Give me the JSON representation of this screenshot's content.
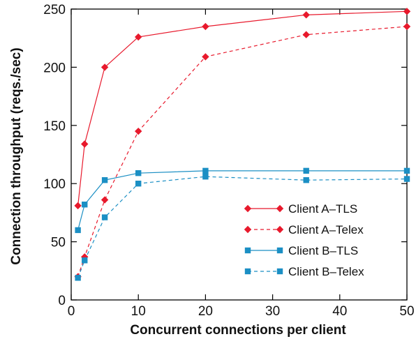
{
  "chart_data": {
    "type": "line",
    "xlabel": "Concurrent connections per client",
    "ylabel": "Connection throughput (reqs./sec)",
    "xlim": [
      0,
      50
    ],
    "ylim": [
      0,
      250
    ],
    "xticks": [
      0,
      10,
      20,
      30,
      40,
      50
    ],
    "yticks": [
      0,
      50,
      100,
      150,
      200,
      250
    ],
    "grid": false,
    "legend_position": "bottom-right",
    "series": [
      {
        "name": "Client A–TLS",
        "color": "#e8192c",
        "marker": "diamond",
        "linestyle": "solid",
        "x": [
          1,
          2,
          5,
          10,
          20,
          35,
          50
        ],
        "y": [
          81,
          134,
          200,
          226,
          235,
          245,
          248
        ]
      },
      {
        "name": "Client A–Telex",
        "color": "#e8192c",
        "marker": "diamond",
        "linestyle": "dashed",
        "x": [
          1,
          2,
          5,
          10,
          20,
          35,
          50
        ],
        "y": [
          20,
          37,
          86,
          145,
          209,
          228,
          235
        ]
      },
      {
        "name": "Client B–TLS",
        "color": "#1b8fc4",
        "marker": "square",
        "linestyle": "solid",
        "x": [
          1,
          2,
          5,
          10,
          20,
          35,
          50
        ],
        "y": [
          60,
          82,
          103,
          109,
          111,
          111,
          111
        ]
      },
      {
        "name": "Client B–Telex",
        "color": "#1b8fc4",
        "marker": "square",
        "linestyle": "dashed",
        "x": [
          1,
          2,
          5,
          10,
          20,
          35,
          50
        ],
        "y": [
          19,
          34,
          71,
          100,
          106,
          103,
          104
        ]
      }
    ]
  }
}
